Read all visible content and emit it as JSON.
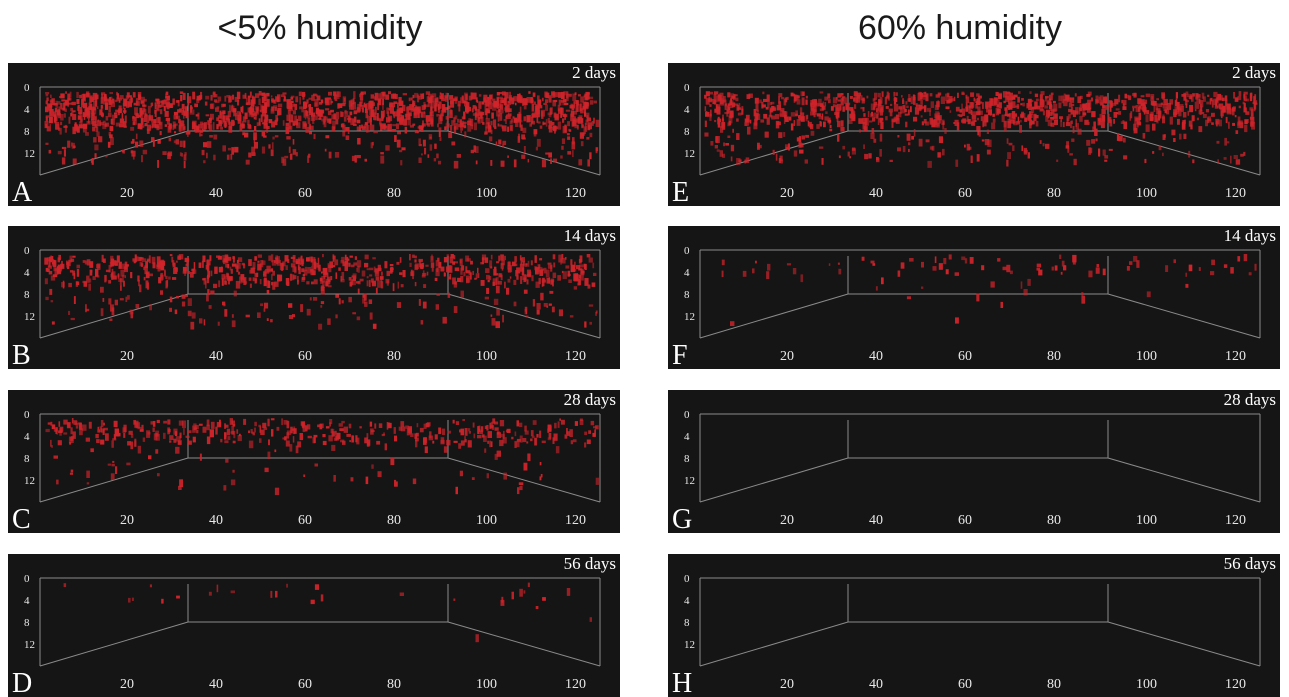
{
  "column_titles": [
    "<5% humidity",
    "60% humidity"
  ],
  "y_ticks": [
    "0",
    "4",
    "8",
    "12"
  ],
  "x_ticks": [
    "20",
    "40",
    "60",
    "80",
    "100",
    "120"
  ],
  "panels": [
    {
      "letter": "A",
      "time": "2 days",
      "column": 0,
      "row": 0,
      "density": 1.0
    },
    {
      "letter": "B",
      "time": "14 days",
      "column": 0,
      "row": 1,
      "density": 0.55
    },
    {
      "letter": "C",
      "time": "28 days",
      "column": 0,
      "row": 2,
      "density": 0.3
    },
    {
      "letter": "D",
      "time": "56 days",
      "column": 0,
      "row": 3,
      "density": 0.02
    },
    {
      "letter": "E",
      "time": "2 days",
      "column": 1,
      "row": 0,
      "density": 0.75
    },
    {
      "letter": "F",
      "time": "14 days",
      "column": 1,
      "row": 1,
      "density": 0.06
    },
    {
      "letter": "G",
      "time": "28 days",
      "column": 1,
      "row": 2,
      "density": 0
    },
    {
      "letter": "H",
      "time": "56 days",
      "column": 1,
      "row": 3,
      "density": 0
    }
  ],
  "colors": {
    "panel_bg": "#151515",
    "signal": "#d0232a",
    "box_lines": "#8a8a8a",
    "text": "#ffffff"
  }
}
